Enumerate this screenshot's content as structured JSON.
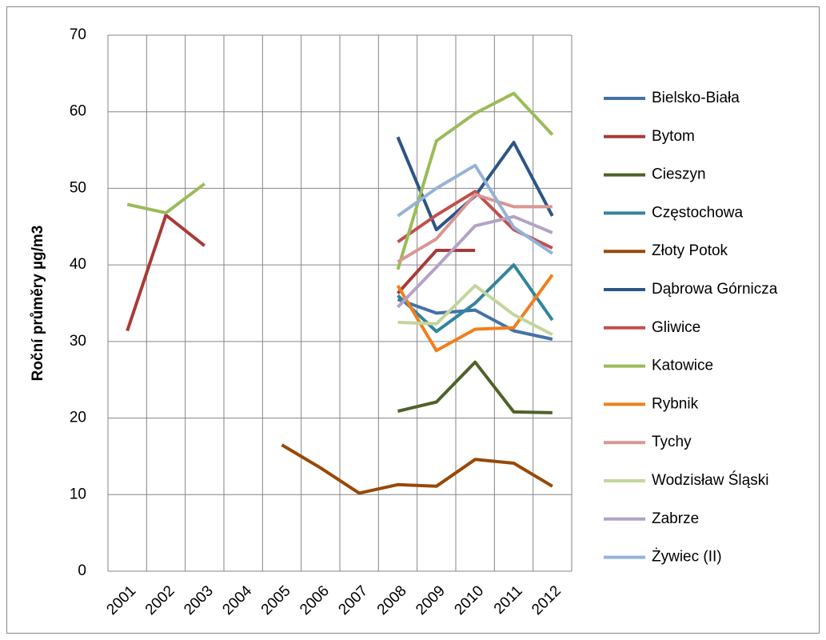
{
  "chart_data": {
    "type": "line",
    "y_label": "Roční průměry µg/m3",
    "categories": [
      "2001",
      "2002",
      "2003",
      "2004",
      "2005",
      "2006",
      "2007",
      "2008",
      "2009",
      "2010",
      "2011",
      "2012"
    ],
    "ylim": [
      0,
      70
    ],
    "yticks": [
      0,
      10,
      20,
      30,
      40,
      50,
      60,
      70
    ],
    "grid": true,
    "series": [
      {
        "name": "Bielsko-Biała",
        "color": "#4472a8",
        "values": [
          null,
          null,
          null,
          null,
          null,
          null,
          null,
          35.5,
          33.7,
          34.1,
          31.4,
          30.3
        ]
      },
      {
        "name": "Bytom",
        "color": "#a83a38",
        "values": [
          31.4,
          46.5,
          42.5,
          null,
          null,
          null,
          null,
          36.3,
          41.9,
          41.9,
          null,
          null
        ]
      },
      {
        "name": "Cieszyn",
        "color": "#4f6228",
        "values": [
          null,
          null,
          null,
          null,
          null,
          null,
          null,
          20.9,
          22.1,
          27.3,
          20.8,
          20.7
        ]
      },
      {
        "name": "Częstochowa",
        "color": "#31859c",
        "values": [
          null,
          null,
          null,
          null,
          null,
          null,
          null,
          36.0,
          31.3,
          35.0,
          40.0,
          32.8
        ]
      },
      {
        "name": "Złoty Potok",
        "color": "#984807",
        "values": [
          null,
          null,
          null,
          null,
          16.5,
          13.5,
          10.2,
          11.3,
          11.1,
          14.6,
          14.1,
          11.1
        ]
      },
      {
        "name": "Dąbrowa Górnicza",
        "color": "#2c5586",
        "values": [
          null,
          null,
          null,
          null,
          null,
          null,
          null,
          56.7,
          44.6,
          49.0,
          56.0,
          46.4
        ]
      },
      {
        "name": "Gliwice",
        "color": "#c0504d",
        "values": [
          null,
          null,
          null,
          null,
          null,
          null,
          null,
          43.0,
          46.5,
          49.6,
          44.6,
          42.2
        ]
      },
      {
        "name": "Katowice",
        "color": "#9bbb59",
        "values": [
          47.9,
          46.8,
          50.6,
          null,
          null,
          null,
          null,
          39.4,
          56.2,
          59.8,
          62.4,
          57.0
        ]
      },
      {
        "name": "Rybnik",
        "color": "#f07f1d",
        "values": [
          null,
          null,
          null,
          null,
          null,
          null,
          null,
          37.3,
          28.8,
          31.6,
          31.8,
          38.7
        ]
      },
      {
        "name": "Tychy",
        "color": "#d99694",
        "values": [
          null,
          null,
          null,
          null,
          null,
          null,
          null,
          40.4,
          43.4,
          49.2,
          47.6,
          47.6
        ]
      },
      {
        "name": "Wodzisław Śląski",
        "color": "#c3d69b",
        "values": [
          null,
          null,
          null,
          null,
          null,
          null,
          null,
          32.5,
          32.3,
          37.3,
          33.5,
          30.9
        ]
      },
      {
        "name": "Zabrze",
        "color": "#b3a2c7",
        "values": [
          null,
          null,
          null,
          null,
          null,
          null,
          null,
          34.5,
          39.7,
          45.1,
          46.3,
          44.2
        ]
      },
      {
        "name": "Żywiec (II)",
        "color": "#95b3d7",
        "values": [
          null,
          null,
          null,
          null,
          null,
          null,
          null,
          46.4,
          50.0,
          53.0,
          44.9,
          41.5
        ]
      }
    ]
  }
}
